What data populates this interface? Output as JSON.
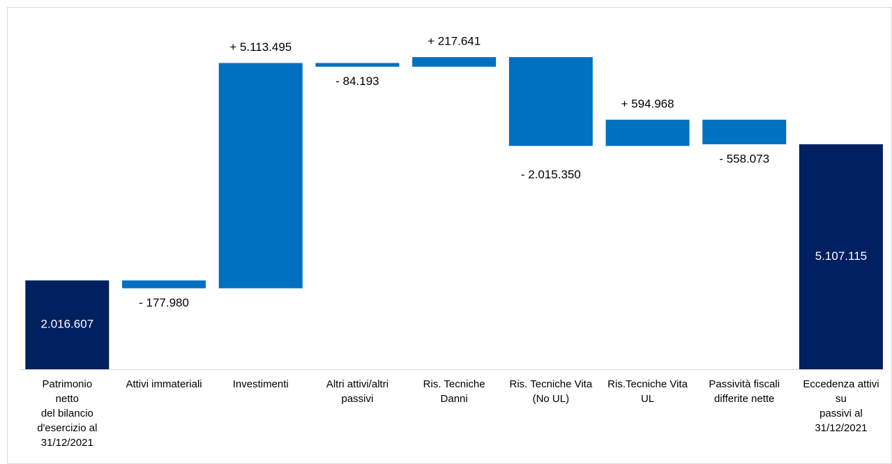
{
  "chart_data": {
    "type": "waterfall",
    "categories": [
      "Patrimonio\nnetto\ndel bilancio\nd'esercizio al\n31/12/2021",
      "Attivi immateriali",
      "Investimenti",
      "Altri attivi/altri\npassivi",
      "Ris. Tecniche\nDanni",
      "Ris. Tecniche Vita\n(No UL)",
      "Ris.Tecniche Vita\nUL",
      "Passività fiscali\ndifferite nette",
      "Eccedenza attivi\nsu\npassivi al\n31/12/2021"
    ],
    "values": [
      2016607,
      -177980,
      5113495,
      -84193,
      217641,
      -2015350,
      594968,
      -558073,
      5107115
    ],
    "value_labels": [
      "2.016.607",
      "- 177.980",
      "+ 5.113.495",
      "- 84.193",
      "+ 217.641",
      "- 2.015.350",
      "+ 594.968",
      "- 558.073",
      "5.107.115"
    ],
    "is_total": [
      true,
      false,
      false,
      false,
      false,
      false,
      false,
      false,
      true
    ],
    "total_color": "#002060",
    "delta_color": "#0070c0"
  }
}
